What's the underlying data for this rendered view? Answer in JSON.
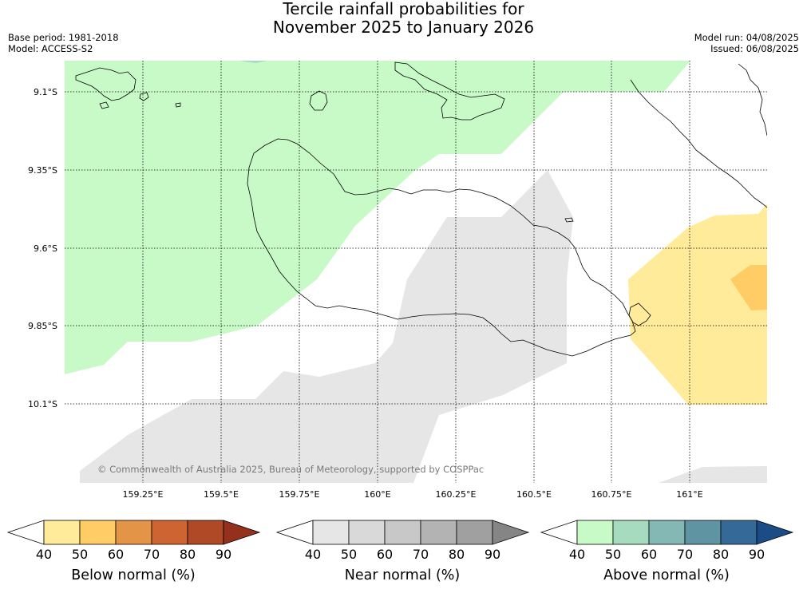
{
  "header": {
    "title_line1": "Tercile rainfall probabilities for",
    "title_line2": "November 2025 to January 2026",
    "base_period": "Base period: 1981-2018",
    "model": "Model: ACCESS-S2",
    "model_run": "Model run: 04/08/2025",
    "issued": "Issued: 06/08/2025"
  },
  "map": {
    "lon_labels": [
      "159.25°E",
      "159.5°E",
      "159.75°E",
      "160°E",
      "160.25°E",
      "160.5°E",
      "160.75°E",
      "161°E"
    ],
    "lat_labels": [
      "9.1°S",
      "9.35°S",
      "9.6°S",
      "9.85°S",
      "10.1°S"
    ],
    "copyright": "© Commonwealth of Australia 2025, Bureau of Meteorology, supported by COSPPac",
    "colors": {
      "above_50": "#c8fac8",
      "below_50": "#ffeb99",
      "below_60": "#ffcc66",
      "near_50": "#e6e6e6",
      "land_line": "#000000"
    }
  },
  "legends": [
    {
      "label": "Below normal (%)",
      "ticks": [
        "40",
        "50",
        "60",
        "70",
        "80",
        "90"
      ],
      "colors": [
        "#ffffff",
        "#ffeb99",
        "#ffcc66",
        "#e49446",
        "#cf6433",
        "#b04a26",
        "#94301b"
      ]
    },
    {
      "label": "Near normal (%)",
      "ticks": [
        "40",
        "50",
        "60",
        "70",
        "80",
        "90"
      ],
      "colors": [
        "#ffffff",
        "#e6e6e6",
        "#d9d9d9",
        "#c8c8c8",
        "#b3b3b3",
        "#a0a0a0",
        "#858585"
      ]
    },
    {
      "label": "Above normal (%)",
      "ticks": [
        "40",
        "50",
        "60",
        "70",
        "80",
        "90"
      ],
      "colors": [
        "#ffffff",
        "#c8fac8",
        "#a6dbbf",
        "#84b8b4",
        "#5f95a3",
        "#356a98",
        "#1b4c85"
      ]
    }
  ]
}
